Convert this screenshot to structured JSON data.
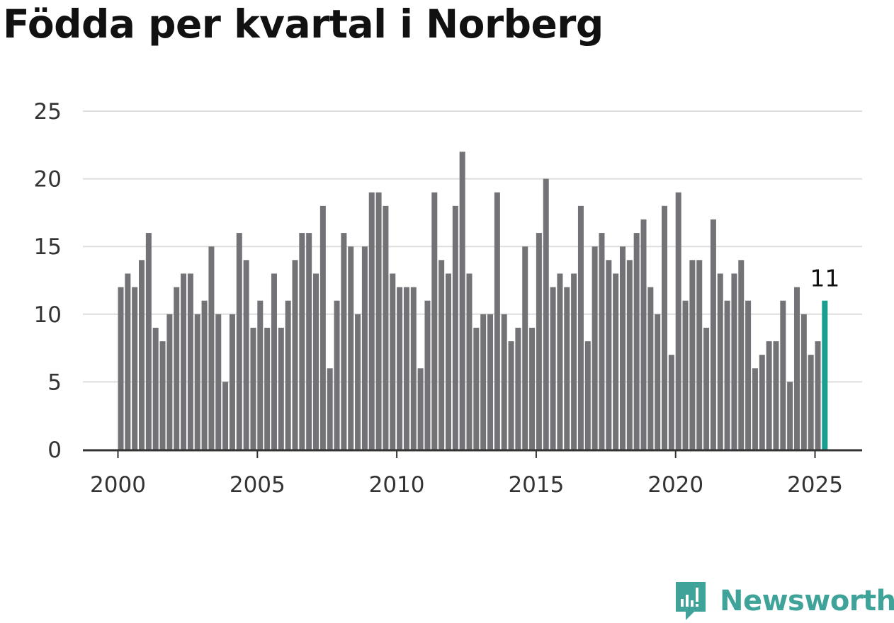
{
  "title": "Födda per kvartal i Norberg",
  "brand": {
    "name": "Newsworthy",
    "icon": "newsworthy-logo-icon",
    "color": "#3fa39a"
  },
  "chart_data": {
    "type": "bar",
    "title": "Födda per kvartal i Norberg",
    "xlabel": "",
    "ylabel": "",
    "ylim": [
      0,
      25
    ],
    "yticks": [
      0,
      5,
      10,
      15,
      20,
      25
    ],
    "xticks": [
      "2000",
      "2005",
      "2010",
      "2015",
      "2020",
      "2025"
    ],
    "x_start": "2000 Q1",
    "grid": true,
    "colors": {
      "bar": "#737277",
      "highlight": "#1a9e90",
      "grid": "#dddddd",
      "axis": "#333333"
    },
    "highlight_label": "11",
    "categories": [
      "2000 Q1",
      "2000 Q2",
      "2000 Q3",
      "2000 Q4",
      "2001 Q1",
      "2001 Q2",
      "2001 Q3",
      "2001 Q4",
      "2002 Q1",
      "2002 Q2",
      "2002 Q3",
      "2002 Q4",
      "2003 Q1",
      "2003 Q2",
      "2003 Q3",
      "2003 Q4",
      "2004 Q1",
      "2004 Q2",
      "2004 Q3",
      "2004 Q4",
      "2005 Q1",
      "2005 Q2",
      "2005 Q3",
      "2005 Q4",
      "2006 Q1",
      "2006 Q2",
      "2006 Q3",
      "2006 Q4",
      "2007 Q1",
      "2007 Q2",
      "2007 Q3",
      "2007 Q4",
      "2008 Q1",
      "2008 Q2",
      "2008 Q3",
      "2008 Q4",
      "2009 Q1",
      "2009 Q2",
      "2009 Q3",
      "2009 Q4",
      "2010 Q1",
      "2010 Q2",
      "2010 Q3",
      "2010 Q4",
      "2011 Q1",
      "2011 Q2",
      "2011 Q3",
      "2011 Q4",
      "2012 Q1",
      "2012 Q2",
      "2012 Q3",
      "2012 Q4",
      "2013 Q1",
      "2013 Q2",
      "2013 Q3",
      "2013 Q4",
      "2014 Q1",
      "2014 Q2",
      "2014 Q3",
      "2014 Q4",
      "2015 Q1",
      "2015 Q2",
      "2015 Q3",
      "2015 Q4",
      "2016 Q1",
      "2016 Q2",
      "2016 Q3",
      "2016 Q4",
      "2017 Q1",
      "2017 Q2",
      "2017 Q3",
      "2017 Q4",
      "2018 Q1",
      "2018 Q2",
      "2018 Q3",
      "2018 Q4",
      "2019 Q1",
      "2019 Q2",
      "2019 Q3",
      "2019 Q4",
      "2020 Q1",
      "2020 Q2",
      "2020 Q3",
      "2020 Q4",
      "2021 Q1",
      "2021 Q2",
      "2021 Q3",
      "2021 Q4",
      "2022 Q1",
      "2022 Q2",
      "2022 Q3",
      "2022 Q4",
      "2023 Q1",
      "2023 Q2",
      "2023 Q3",
      "2023 Q4",
      "2024 Q1",
      "2024 Q2",
      "2024 Q3",
      "2024 Q4",
      "2025 Q1",
      "2025 Q2"
    ],
    "values": [
      12,
      13,
      12,
      14,
      16,
      9,
      8,
      10,
      12,
      13,
      13,
      10,
      11,
      15,
      10,
      5,
      10,
      16,
      14,
      9,
      11,
      9,
      13,
      9,
      11,
      14,
      16,
      16,
      13,
      18,
      6,
      11,
      16,
      15,
      10,
      15,
      19,
      19,
      18,
      13,
      12,
      12,
      12,
      6,
      11,
      19,
      14,
      13,
      18,
      22,
      13,
      9,
      10,
      10,
      19,
      10,
      8,
      9,
      15,
      9,
      16,
      20,
      12,
      13,
      12,
      13,
      18,
      8,
      15,
      16,
      14,
      13,
      15,
      14,
      16,
      17,
      12,
      10,
      18,
      7,
      19,
      11,
      14,
      14,
      9,
      17,
      13,
      11,
      13,
      14,
      11,
      6,
      7,
      8,
      8,
      11,
      5,
      12,
      10,
      7,
      8,
      11
    ]
  }
}
